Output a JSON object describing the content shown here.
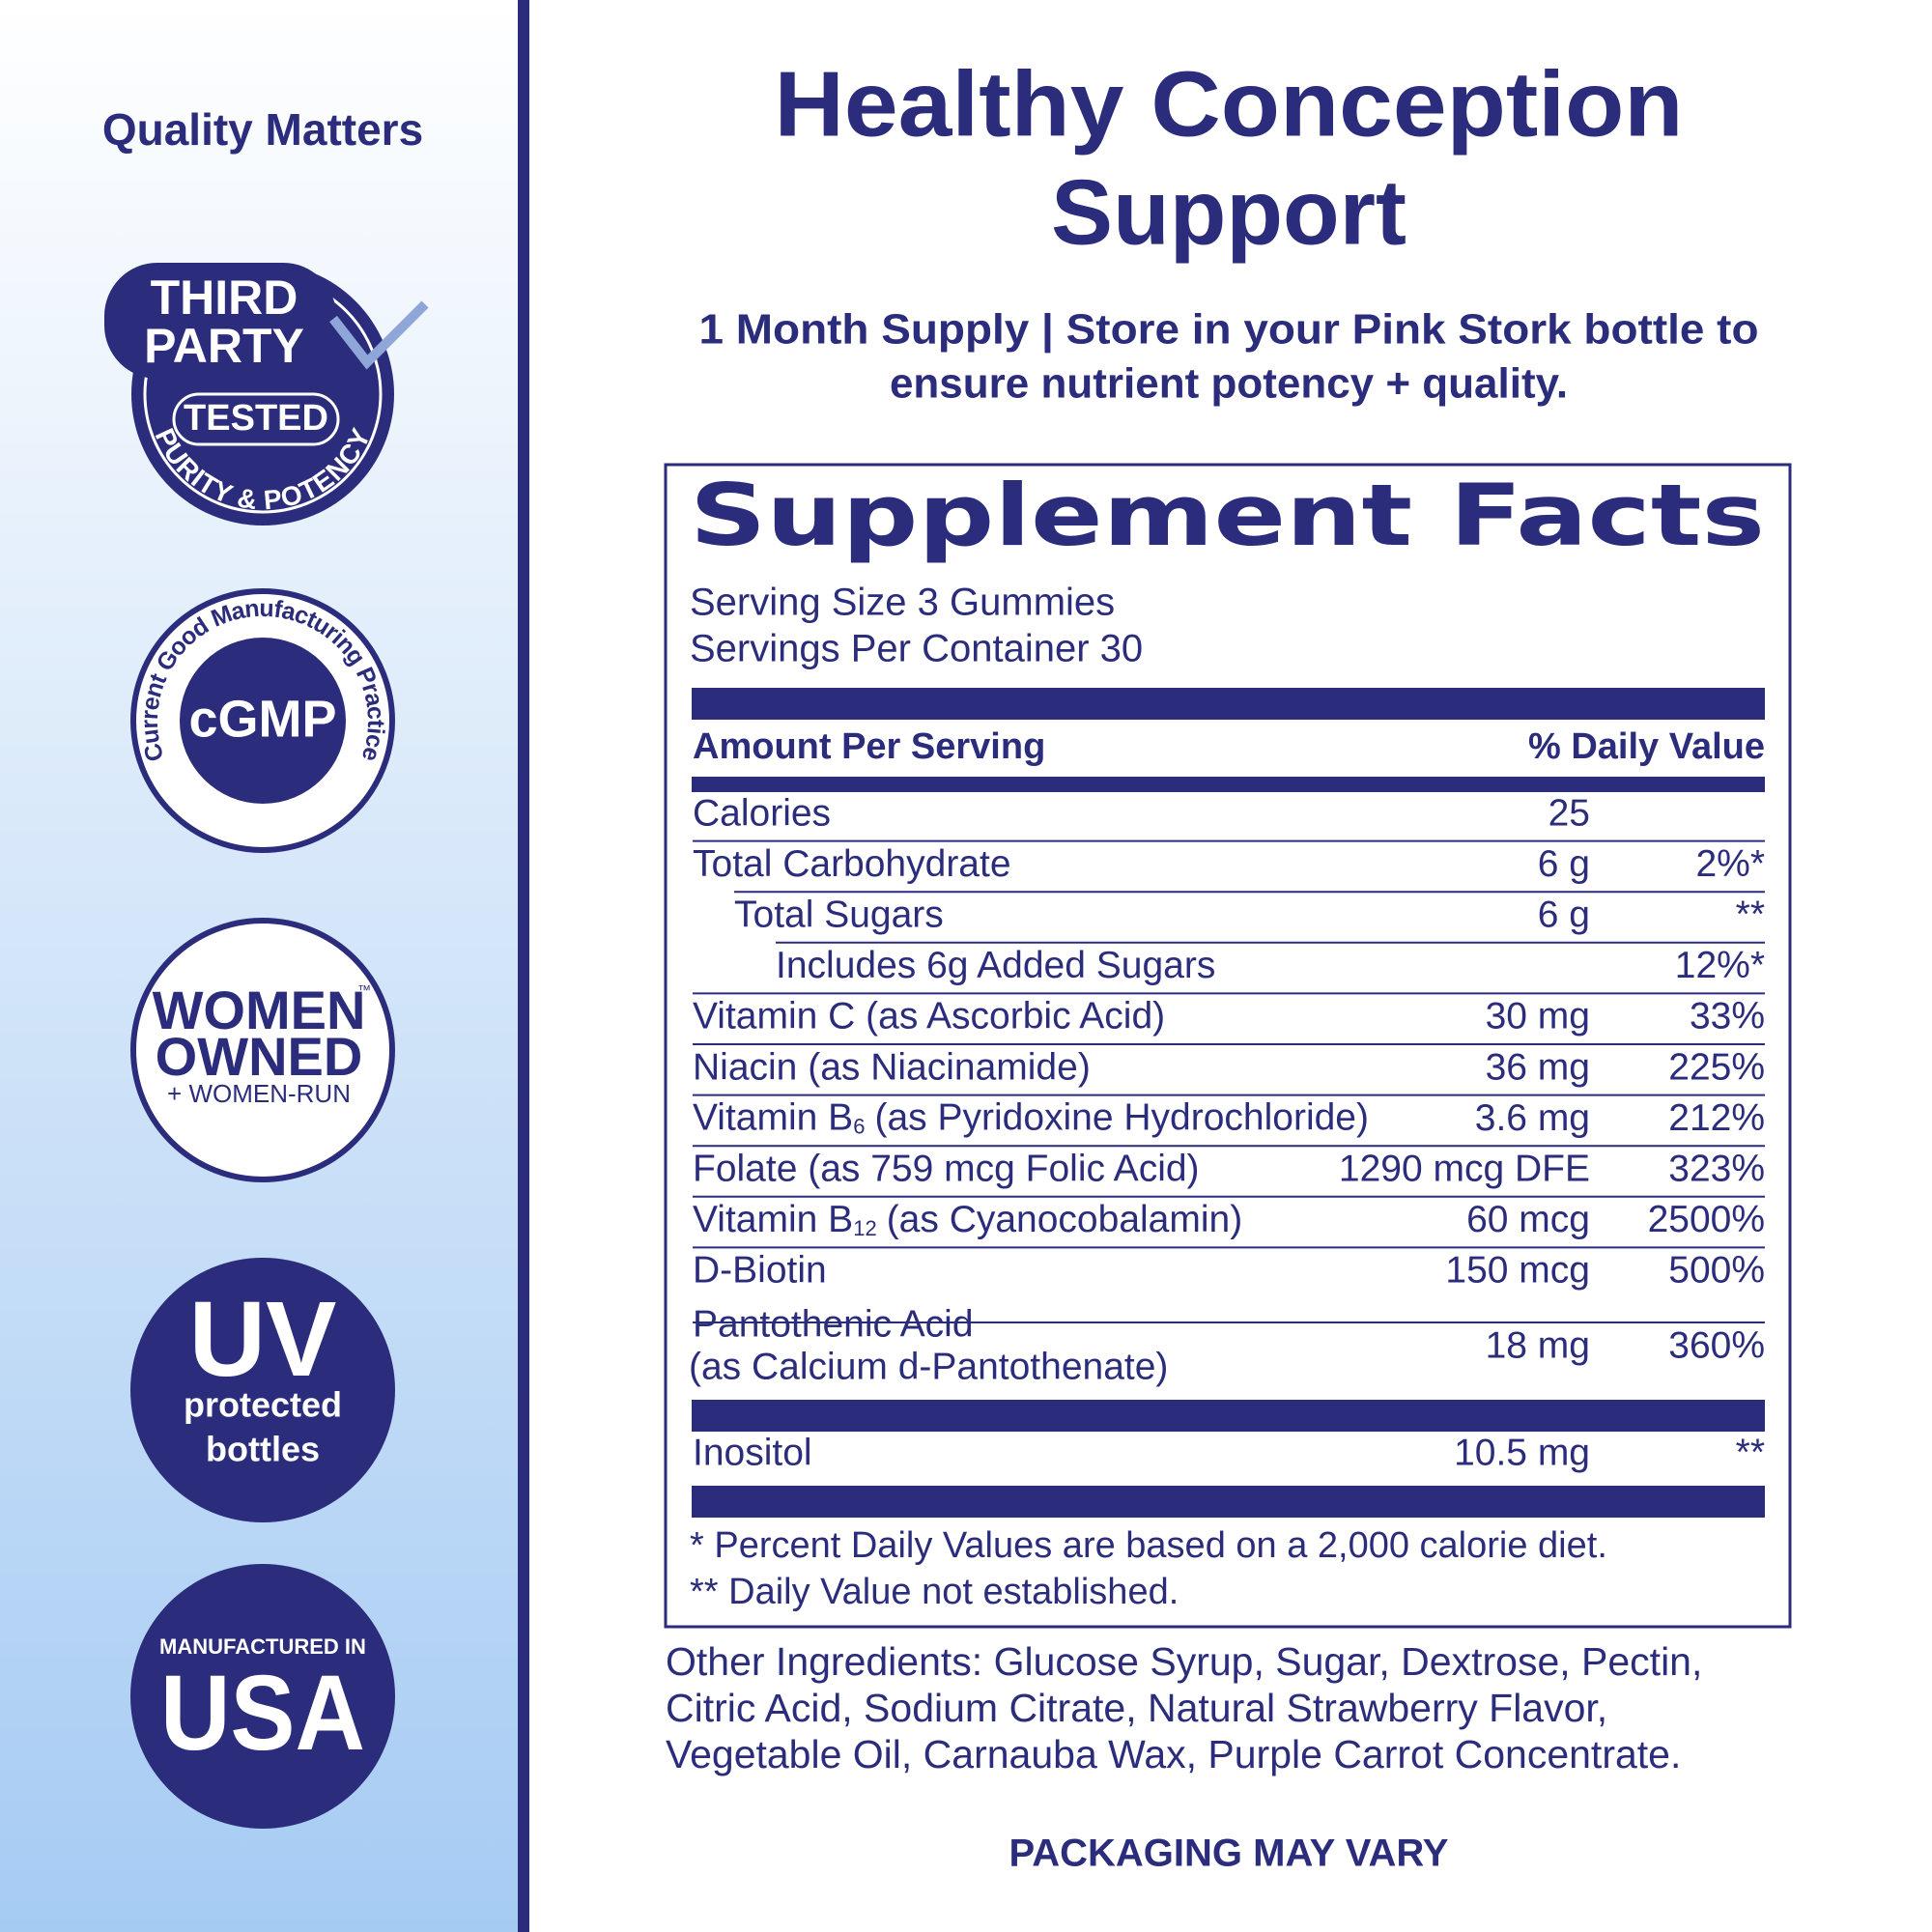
{
  "sidebar": {
    "title": "Quality Matters",
    "third_party": {
      "line1": "THIRD",
      "line2": "PARTY",
      "label": "TESTED",
      "arc": "PURITY & POTENCY"
    },
    "cgmp": {
      "arc": "Current Good Manufacturing Practice",
      "label": "cGMP"
    },
    "women": {
      "line1": "WOMEN",
      "trademark": "™",
      "line2": "OWNED",
      "line3": "+ WOMEN-RUN"
    },
    "uv": {
      "label": "UV",
      "line1": "protected",
      "line2": "bottles"
    },
    "usa": {
      "line1": "MANUFACTURED IN",
      "label": "USA"
    }
  },
  "header": {
    "title_lines": [
      "Healthy Conception",
      "Support"
    ],
    "subtitle_lines": [
      "1 Month Supply | Store in your Pink Stork bottle to",
      "ensure nutrient potency + quality."
    ]
  },
  "facts": {
    "title": "Supplement Facts",
    "serving_size": "Serving Size 3 Gummies",
    "servings": "Servings Per Container 30",
    "amount_header": "Amount Per Serving",
    "dv_header": "% Daily Value",
    "nutrients": [
      {
        "name": "Calories",
        "amount": "25"
      },
      {
        "name": "Total Carbohydrate",
        "amount": "6 g",
        "dv": "2%*"
      },
      {
        "name": "Total Sugars",
        "amount": "6 g",
        "dv": "**"
      },
      {
        "name": "Includes 6g Added Sugars",
        "dv": "12%*"
      },
      {
        "name": "Vitamin C (as Ascorbic Acid)",
        "amount": "30 mg",
        "dv": "33%"
      },
      {
        "name": "Niacin (as Niacinamide)",
        "amount": "36 mg",
        "dv": "225%"
      },
      {
        "name": "Vitamin B",
        "sub": "6",
        "rest": "(as Pyridoxine Hydrochloride)",
        "amount": "3.6 mg",
        "dv": "212%"
      },
      {
        "name": "Folate (as 759 mcg Folic Acid)",
        "amount": "1290 mcg DFE",
        "dv": "323%"
      },
      {
        "name": "Vitamin B",
        "sub": "12",
        "rest": "(as Cyanocobalamin)",
        "amount": "60 mcg",
        "dv": "2500%"
      },
      {
        "name": "D-Biotin",
        "amount": "150 mcg",
        "dv": "500%"
      },
      {
        "name": "Pantothenic Acid",
        "name2": "(as Calcium d-Pantothenate)",
        "amount": "18 mg",
        "dv": "360%"
      }
    ],
    "other_nutrients": [
      {
        "name": "Inositol",
        "amount": "10.5 mg",
        "dv": "**"
      }
    ],
    "footnotes": [
      "* Percent Daily Values are based on a 2,000 calorie diet.",
      "** Daily Value not established."
    ]
  },
  "other_ingredients": [
    "Other Ingredients: Glucose Syrup, Sugar, Dextrose, Pectin,",
    "Citric Acid, Sodium Citrate, Natural Strawberry Flavor,",
    "Vegetable Oil, Carnauba Wax, Purple Carrot Concentrate."
  ],
  "footer": "PACKAGING MAY VARY"
}
